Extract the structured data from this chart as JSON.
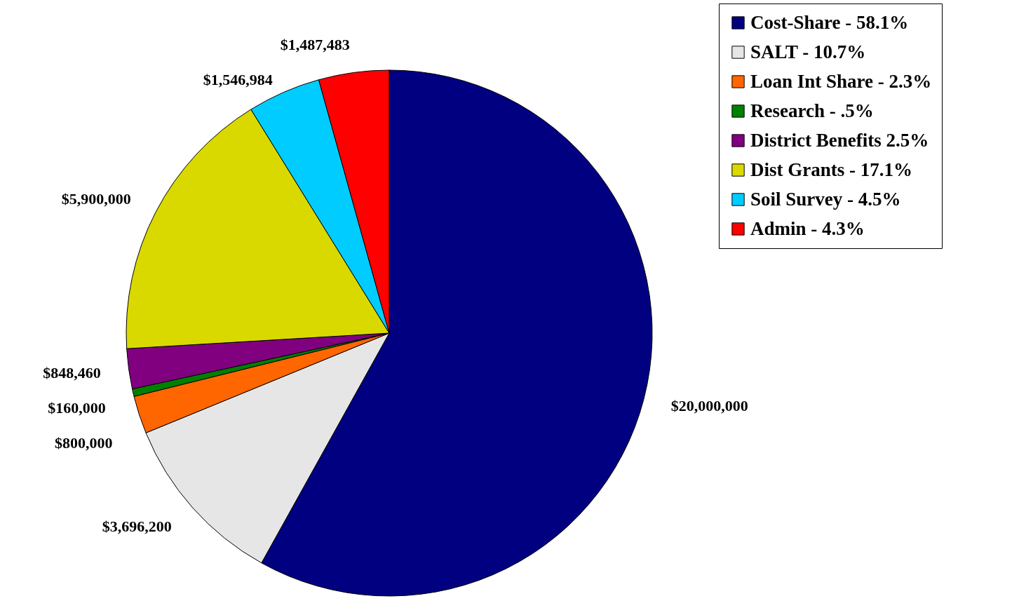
{
  "chart_data": {
    "type": "pie",
    "categories": [
      "Cost-Share - 58.1%",
      "SALT - 10.7%",
      "Loan Int Share - 2.3%",
      "Research - .5%",
      "District Benefits 2.5%",
      "Dist Grants - 17.1%",
      "Soil Survey - 4.5%",
      "Admin - 4.3%"
    ],
    "values": [
      20000000,
      3696200,
      800000,
      160000,
      848460,
      5900000,
      1546984,
      1487483
    ],
    "colors": [
      "#000080",
      "#e6e6e6",
      "#ff6600",
      "#008000",
      "#800080",
      "#d9d900",
      "#00ccff",
      "#ff0000"
    ],
    "value_labels": [
      "$20,000,000",
      "$3,696,200",
      "$800,000",
      "$160,000",
      "$848,460",
      "$5,900,000",
      "$1,546,984",
      "$1,487,483"
    ],
    "legend": "top right"
  }
}
